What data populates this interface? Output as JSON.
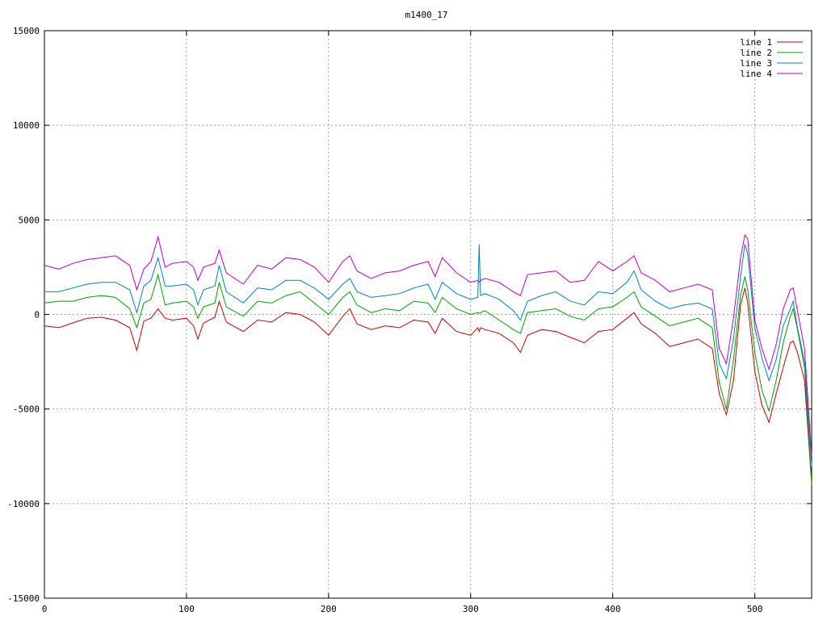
{
  "chart_data": {
    "type": "line",
    "title": "m1400_17",
    "xlabel": "",
    "ylabel": "",
    "xlim": [
      0,
      540
    ],
    "ylim": [
      -15000,
      15000
    ],
    "x_ticks": [
      0,
      100,
      200,
      300,
      400,
      500
    ],
    "y_ticks": [
      -15000,
      -10000,
      -5000,
      0,
      5000,
      10000,
      15000
    ],
    "grid": true,
    "legend_position": "top-right",
    "x": [
      0,
      10,
      20,
      30,
      40,
      50,
      60,
      65,
      70,
      75,
      80,
      85,
      90,
      100,
      105,
      108,
      112,
      120,
      123,
      128,
      140,
      150,
      160,
      170,
      180,
      190,
      200,
      210,
      215,
      220,
      230,
      240,
      250,
      260,
      270,
      275,
      280,
      290,
      300,
      305,
      306,
      307,
      310,
      320,
      330,
      335,
      340,
      350,
      360,
      370,
      380,
      390,
      400,
      410,
      415,
      420,
      430,
      440,
      450,
      460,
      470,
      475,
      480,
      485,
      490,
      493,
      495,
      500,
      505,
      510,
      515,
      520,
      525,
      527,
      530,
      535,
      540
    ],
    "series": [
      {
        "name": "line 1",
        "color": "#cc0000",
        "values": [
          -600,
          -700,
          -450,
          -200,
          -150,
          -300,
          -700,
          -1900,
          -350,
          -200,
          300,
          -200,
          -300,
          -200,
          -600,
          -1300,
          -450,
          -150,
          700,
          -400,
          -900,
          -300,
          -400,
          100,
          0,
          -400,
          -1100,
          -100,
          300,
          -500,
          -800,
          -600,
          -700,
          -300,
          -400,
          -1000,
          -200,
          -900,
          -1100,
          -700,
          -900,
          -700,
          -800,
          -1000,
          -1500,
          -2000,
          -1100,
          -800,
          -900,
          -1200,
          -1500,
          -900,
          -800,
          -200,
          100,
          -500,
          -1000,
          -1700,
          -1500,
          -1300,
          -1800,
          -4200,
          -5300,
          -3500,
          500,
          1400,
          600,
          -3000,
          -4800,
          -5700,
          -4200,
          -2800,
          -1500,
          -1400,
          -2000,
          -3500,
          -9000
        ]
      },
      {
        "name": "line 2",
        "color": "#00a000",
        "values": [
          600,
          700,
          700,
          900,
          1000,
          900,
          300,
          -700,
          600,
          800,
          2100,
          500,
          600,
          700,
          400,
          -200,
          400,
          600,
          1700,
          400,
          -100,
          700,
          600,
          1000,
          1200,
          600,
          0,
          900,
          1200,
          500,
          100,
          300,
          200,
          700,
          600,
          100,
          900,
          300,
          0,
          100,
          50,
          100,
          200,
          -300,
          -800,
          -1000,
          100,
          200,
          300,
          -100,
          -300,
          300,
          400,
          900,
          1200,
          400,
          -100,
          -600,
          -400,
          -200,
          -700,
          -3600,
          -5000,
          -2400,
          1000,
          2000,
          1300,
          -2000,
          -4000,
          -5100,
          -3500,
          -1500,
          -100,
          300,
          -800,
          -2800,
          -8900
        ]
      },
      {
        "name": "line 3",
        "color": "#0080c0",
        "values": [
          1200,
          1200,
          1400,
          1600,
          1700,
          1700,
          1300,
          100,
          1500,
          1800,
          3000,
          1500,
          1500,
          1600,
          1300,
          500,
          1300,
          1500,
          2600,
          1200,
          600,
          1400,
          1300,
          1800,
          1800,
          1400,
          800,
          1600,
          1900,
          1200,
          900,
          1000,
          1100,
          1400,
          1600,
          800,
          1700,
          1100,
          800,
          900,
          3700,
          1000,
          1100,
          800,
          200,
          -300,
          700,
          1000,
          1200,
          700,
          500,
          1200,
          1100,
          1700,
          2300,
          1300,
          700,
          300,
          500,
          600,
          300,
          -2600,
          -3400,
          -1300,
          2000,
          3700,
          3200,
          -700,
          -2300,
          -3500,
          -2400,
          -600,
          300,
          700,
          -700,
          -2500,
          -8000
        ]
      },
      {
        "name": "line 4",
        "color": "#c000c0",
        "values": [
          2600,
          2400,
          2700,
          2900,
          3000,
          3100,
          2600,
          1300,
          2400,
          2800,
          4100,
          2500,
          2700,
          2800,
          2500,
          1800,
          2500,
          2700,
          3400,
          2200,
          1600,
          2600,
          2400,
          3000,
          2900,
          2500,
          1700,
          2800,
          3100,
          2300,
          1900,
          2200,
          2300,
          2600,
          2800,
          2000,
          3000,
          2200,
          1700,
          1800,
          1700,
          1800,
          1900,
          1700,
          1200,
          1000,
          2100,
          2200,
          2300,
          1700,
          1800,
          2800,
          2300,
          2800,
          3100,
          2200,
          1800,
          1200,
          1400,
          1600,
          1300,
          -1800,
          -2600,
          -200,
          3000,
          4200,
          4000,
          -300,
          -1800,
          -2900,
          -1600,
          300,
          1300,
          1400,
          200,
          -1800,
          -7500
        ]
      }
    ]
  }
}
